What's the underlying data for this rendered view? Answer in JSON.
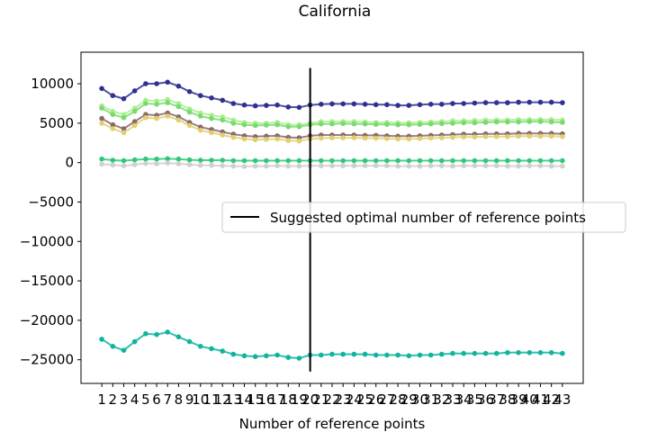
{
  "chart_data": {
    "type": "line",
    "title": "California",
    "xlabel": "Number of reference points",
    "ylabel": "",
    "x": [
      1,
      2,
      3,
      4,
      5,
      6,
      7,
      8,
      9,
      10,
      11,
      12,
      13,
      14,
      15,
      16,
      17,
      18,
      19,
      20,
      21,
      22,
      23,
      24,
      25,
      26,
      27,
      28,
      29,
      30,
      31,
      32,
      33,
      34,
      35,
      36,
      37,
      38,
      39,
      40,
      41,
      42,
      43
    ],
    "xlim": [
      -0.9,
      44.9
    ],
    "ylim": [
      -28000,
      14000
    ],
    "yticks": [
      10000,
      5000,
      0,
      -5000,
      -10000,
      -15000,
      -20000,
      -25000
    ],
    "ytick_labels": [
      "10000",
      "5000",
      "0",
      "−5000",
      "−10000",
      "−15000",
      "−20000",
      "−25000"
    ],
    "grid": false,
    "legend": {
      "placement": "center-right",
      "entries": [
        {
          "label": "Suggested optimal number of reference points",
          "color": "#000000"
        }
      ]
    },
    "vline": {
      "x": 20,
      "ymin": -26500,
      "ymax": 12000,
      "color": "#000000"
    },
    "series": [
      {
        "color": "#2d3190",
        "values": [
          9400,
          8500,
          8100,
          9100,
          10000,
          10000,
          10200,
          9700,
          9000,
          8500,
          8200,
          7900,
          7500,
          7300,
          7200,
          7250,
          7300,
          7050,
          7000,
          7300,
          7400,
          7450,
          7450,
          7450,
          7400,
          7350,
          7350,
          7250,
          7250,
          7350,
          7400,
          7400,
          7500,
          7500,
          7550,
          7600,
          7600,
          7600,
          7650,
          7650,
          7650,
          7650,
          7600
        ]
      },
      {
        "color": "#a8f08c",
        "values": [
          7200,
          6500,
          6100,
          6900,
          7900,
          7800,
          8000,
          7500,
          6800,
          6300,
          6000,
          5800,
          5400,
          5100,
          5000,
          5000,
          5100,
          4800,
          4800,
          5000,
          5200,
          5200,
          5200,
          5200,
          5150,
          5100,
          5100,
          5050,
          5050,
          5100,
          5150,
          5200,
          5300,
          5300,
          5350,
          5400,
          5400,
          5400,
          5450,
          5450,
          5450,
          5450,
          5400
        ]
      },
      {
        "color": "#7ad970",
        "values": [
          6900,
          6100,
          5700,
          6500,
          7500,
          7400,
          7600,
          7100,
          6400,
          5900,
          5600,
          5400,
          5000,
          4800,
          4700,
          4750,
          4800,
          4550,
          4550,
          4800,
          4900,
          4900,
          4950,
          4900,
          4900,
          4850,
          4850,
          4800,
          4800,
          4850,
          4900,
          4950,
          5000,
          5050,
          5050,
          5100,
          5150,
          5150,
          5150,
          5200,
          5200,
          5150,
          5100
        ]
      },
      {
        "color": "#8a6a6a",
        "values": [
          5600,
          4800,
          4300,
          5200,
          6100,
          6000,
          6300,
          5800,
          5100,
          4500,
          4200,
          3900,
          3600,
          3400,
          3300,
          3350,
          3400,
          3200,
          3150,
          3400,
          3500,
          3500,
          3500,
          3500,
          3450,
          3450,
          3400,
          3350,
          3350,
          3400,
          3450,
          3500,
          3550,
          3600,
          3600,
          3650,
          3650,
          3650,
          3700,
          3700,
          3700,
          3700,
          3650
        ]
      },
      {
        "color": "#e0d070",
        "values": [
          5000,
          4300,
          3800,
          4700,
          5700,
          5600,
          5900,
          5400,
          4700,
          4100,
          3800,
          3500,
          3200,
          3000,
          2900,
          2950,
          3000,
          2800,
          2750,
          3000,
          3100,
          3150,
          3150,
          3150,
          3100,
          3100,
          3050,
          3000,
          3000,
          3050,
          3100,
          3150,
          3200,
          3250,
          3250,
          3300,
          3300,
          3300,
          3350,
          3350,
          3350,
          3350,
          3300
        ]
      },
      {
        "color": "#30c878",
        "values": [
          450,
          300,
          250,
          350,
          450,
          450,
          500,
          450,
          350,
          300,
          300,
          300,
          250,
          250,
          250,
          250,
          250,
          250,
          250,
          250,
          250,
          250,
          250,
          250,
          250,
          250,
          250,
          250,
          250,
          250,
          250,
          250,
          250,
          250,
          250,
          250,
          250,
          250,
          250,
          250,
          250,
          250,
          250
        ]
      },
      {
        "color": "#d0cfcf",
        "values": [
          -200,
          -300,
          -400,
          -250,
          -100,
          -150,
          -50,
          -150,
          -250,
          -350,
          -350,
          -400,
          -450,
          -500,
          -450,
          -450,
          -400,
          -450,
          -450,
          -400,
          -400,
          -400,
          -400,
          -400,
          -400,
          -400,
          -400,
          -450,
          -450,
          -450,
          -400,
          -400,
          -450,
          -400,
          -400,
          -400,
          -400,
          -450,
          -450,
          -400,
          -400,
          -450,
          -450
        ]
      },
      {
        "color": "#10b4a0",
        "values": [
          -22400,
          -23300,
          -23800,
          -22700,
          -21700,
          -21800,
          -21500,
          -22100,
          -22700,
          -23300,
          -23600,
          -23900,
          -24300,
          -24500,
          -24600,
          -24500,
          -24400,
          -24700,
          -24800,
          -24400,
          -24400,
          -24300,
          -24300,
          -24300,
          -24300,
          -24400,
          -24400,
          -24400,
          -24500,
          -24400,
          -24400,
          -24300,
          -24200,
          -24200,
          -24200,
          -24200,
          -24200,
          -24100,
          -24100,
          -24100,
          -24100,
          -24100,
          -24200
        ]
      }
    ]
  }
}
